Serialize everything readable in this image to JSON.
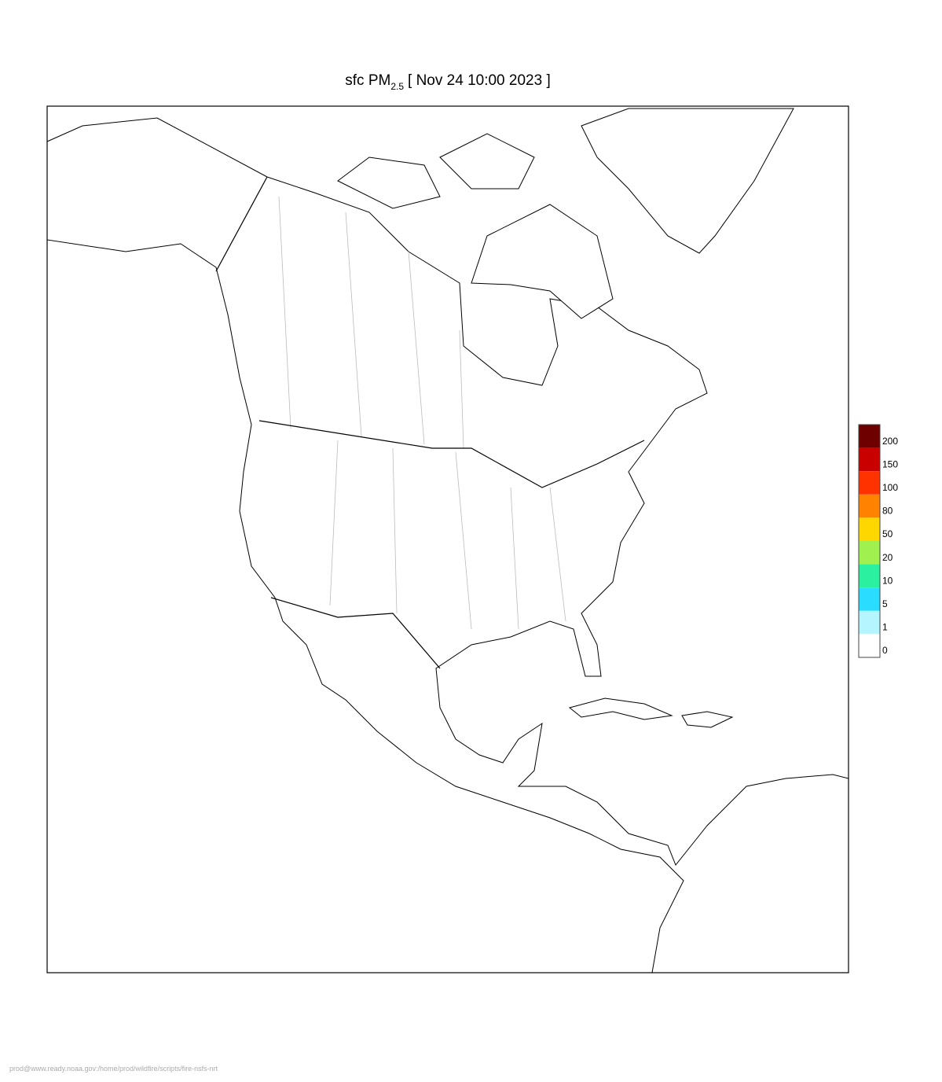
{
  "header": {
    "title_prefix": "sfc PM",
    "title_subscript": "2.5",
    "title_suffix": "[ Nov 24 10:00 2023 ]"
  },
  "legend": {
    "levels": [
      200,
      150,
      100,
      80,
      50,
      20,
      10,
      5,
      1,
      0
    ],
    "colors": [
      "#6e0000",
      "#c80000",
      "#ff3200",
      "#ff8200",
      "#ffd700",
      "#a0f050",
      "#2af0a0",
      "#2adcff",
      "#b4f5ff",
      "#ffffff"
    ]
  },
  "footer": "prod@www.ready.noaa.gov:/home/prod/wildfire/scripts/fire-nsfs-nrt"
}
